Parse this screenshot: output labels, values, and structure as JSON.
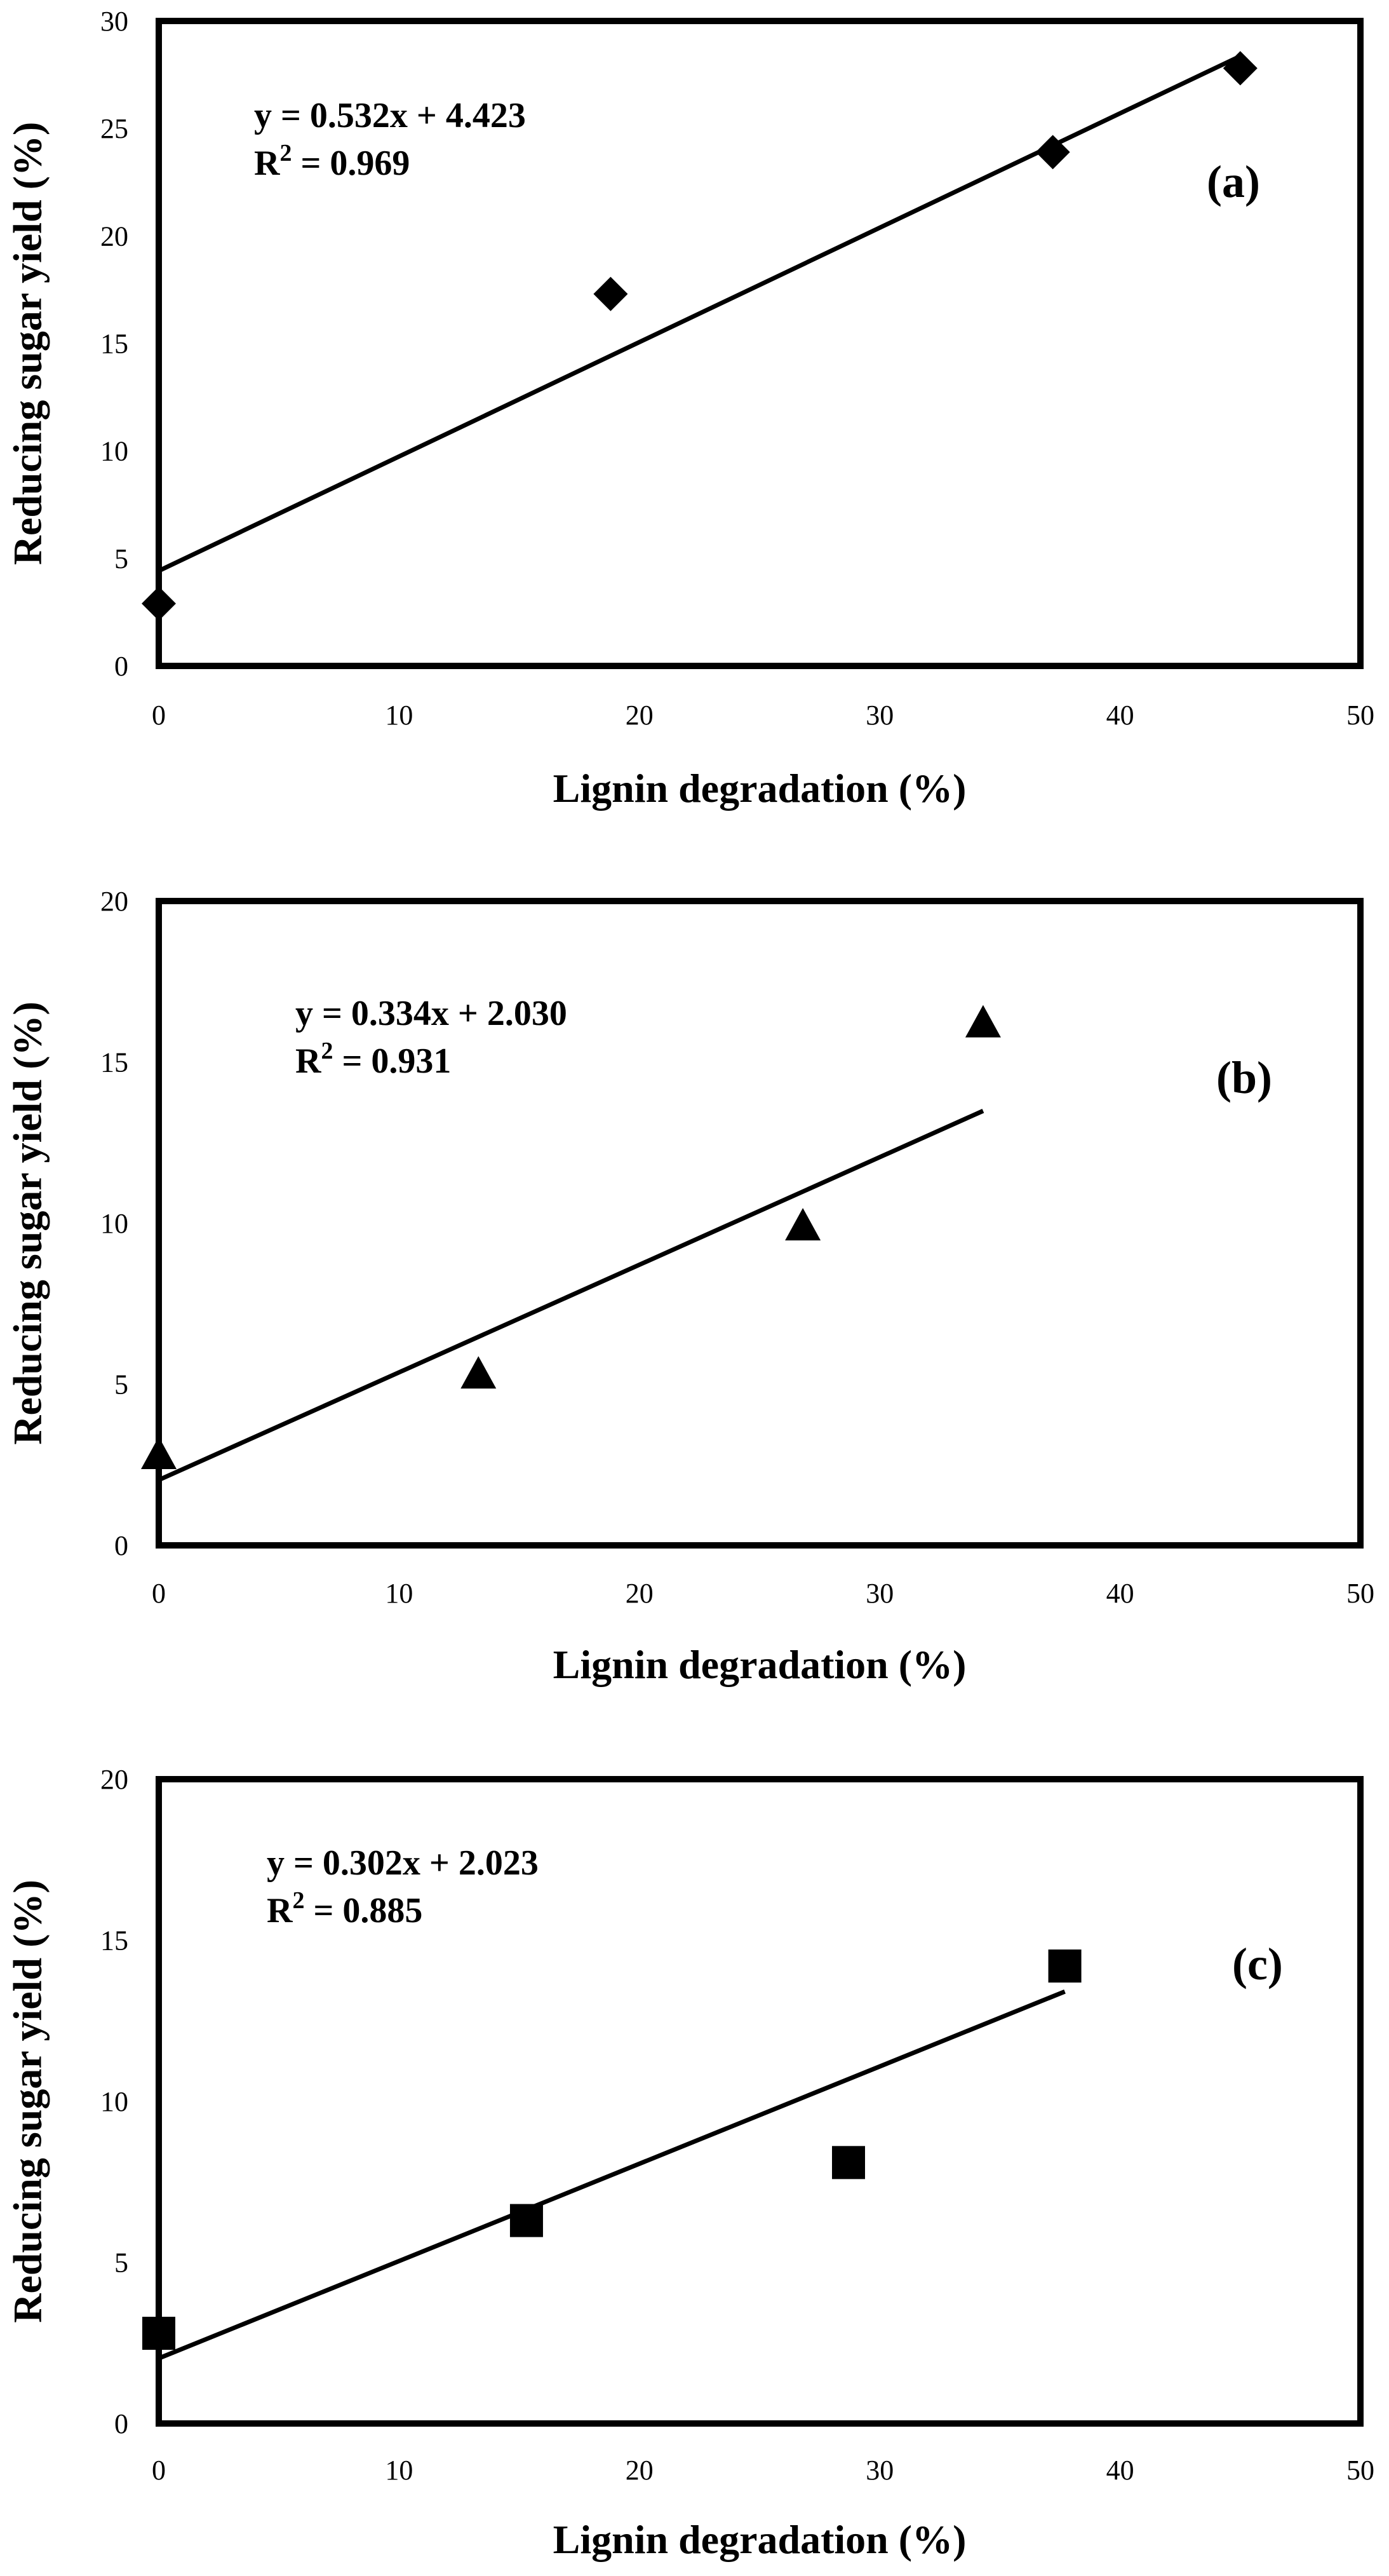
{
  "chart_data": [
    {
      "type": "scatter",
      "panel_label": "(a)",
      "xlabel": "Lignin degradation (%)",
      "ylabel": "Reducing sugar yield (%)",
      "xlim": [
        0,
        50
      ],
      "ylim": [
        0,
        30
      ],
      "xticks": [
        0,
        10,
        20,
        30,
        40,
        50
      ],
      "yticks": [
        0,
        5,
        10,
        15,
        20,
        25,
        30
      ],
      "marker": "diamond",
      "points": [
        {
          "x": 0,
          "y": 2.9
        },
        {
          "x": 18.8,
          "y": 17.3
        },
        {
          "x": 37.2,
          "y": 23.9
        },
        {
          "x": 45.0,
          "y": 27.8
        }
      ],
      "trendline": {
        "slope": 0.532,
        "intercept": 4.423,
        "x_range": [
          0,
          45
        ]
      },
      "equation": "y = 0.532x + 4.423",
      "r2_prefix": "R",
      "r2_sup": "2",
      "r2_value": " = 0.969"
    },
    {
      "type": "scatter",
      "panel_label": "(b)",
      "xlabel": "Lignin degradation (%)",
      "ylabel": "Reducing sugar yield (%)",
      "xlim": [
        0,
        50
      ],
      "ylim": [
        0,
        20
      ],
      "xticks": [
        0,
        10,
        20,
        30,
        40,
        50
      ],
      "yticks": [
        0,
        5,
        10,
        15,
        20
      ],
      "marker": "triangle",
      "points": [
        {
          "x": 0,
          "y": 2.8
        },
        {
          "x": 13.3,
          "y": 5.3
        },
        {
          "x": 26.8,
          "y": 9.9
        },
        {
          "x": 34.3,
          "y": 16.2
        }
      ],
      "trendline": {
        "slope": 0.334,
        "intercept": 2.03,
        "x_range": [
          0,
          34.3
        ]
      },
      "equation": "y = 0.334x + 2.030",
      "r2_prefix": "R",
      "r2_sup": "2",
      "r2_value": " = 0.931"
    },
    {
      "type": "scatter",
      "panel_label": "(c)",
      "xlabel": "Lignin degradation (%)",
      "ylabel": "Reducing sugar yield (%)",
      "xlim": [
        0,
        50
      ],
      "ylim": [
        0,
        20
      ],
      "xticks": [
        0,
        10,
        20,
        30,
        40,
        50
      ],
      "yticks": [
        0,
        5,
        10,
        15,
        20
      ],
      "marker": "square",
      "points": [
        {
          "x": 0,
          "y": 2.8
        },
        {
          "x": 15.3,
          "y": 6.3
        },
        {
          "x": 28.7,
          "y": 8.1
        },
        {
          "x": 37.7,
          "y": 14.2
        }
      ],
      "trendline": {
        "slope": 0.302,
        "intercept": 2.023,
        "x_range": [
          0,
          37.7
        ]
      },
      "equation": "y = 0.302x + 2.023",
      "r2_prefix": "R",
      "r2_sup": "2",
      "r2_value": " = 0.885"
    }
  ]
}
